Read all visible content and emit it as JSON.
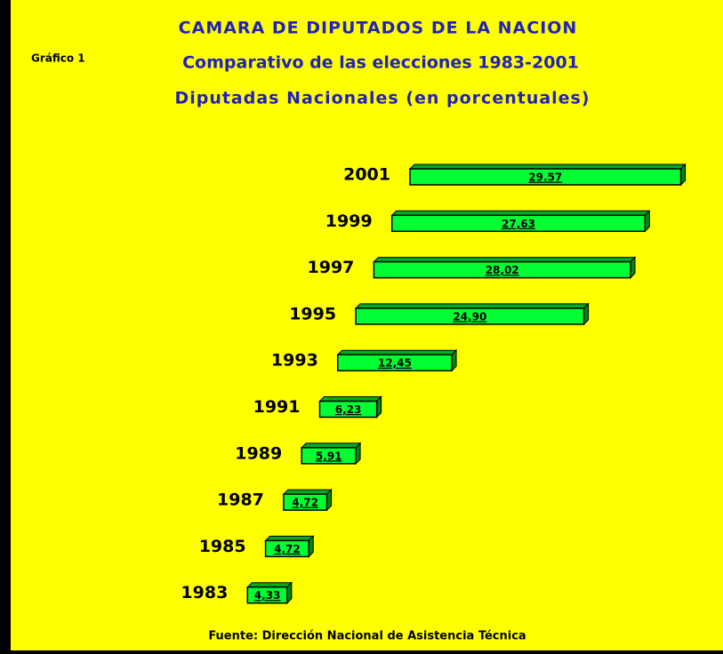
{
  "chart_data": {
    "type": "bar",
    "orientation": "horizontal",
    "title": "CAMARA DE DIPUTADOS DE LA NACION",
    "subtitle": "Comparativo de las elecciones 1983-2001",
    "chart_label": "Diputadas Nacionales (en porcentuales)",
    "figure_label": "Gráfico 1",
    "source": "Fuente: Dirección Nacional de Asistencia Técnica",
    "categories": [
      "2001",
      "1999",
      "1997",
      "1995",
      "1993",
      "1991",
      "1989",
      "1987",
      "1985",
      "1983"
    ],
    "values": [
      29.57,
      27.63,
      28.02,
      24.9,
      12.45,
      6.23,
      5.91,
      4.72,
      4.72,
      4.33
    ],
    "value_labels": [
      "29.57",
      "27,63",
      "28,02",
      "24,90",
      "12,45",
      "6,23",
      "5,91",
      "4,72",
      "4,72",
      "4,33"
    ],
    "color": "#00ff33"
  }
}
